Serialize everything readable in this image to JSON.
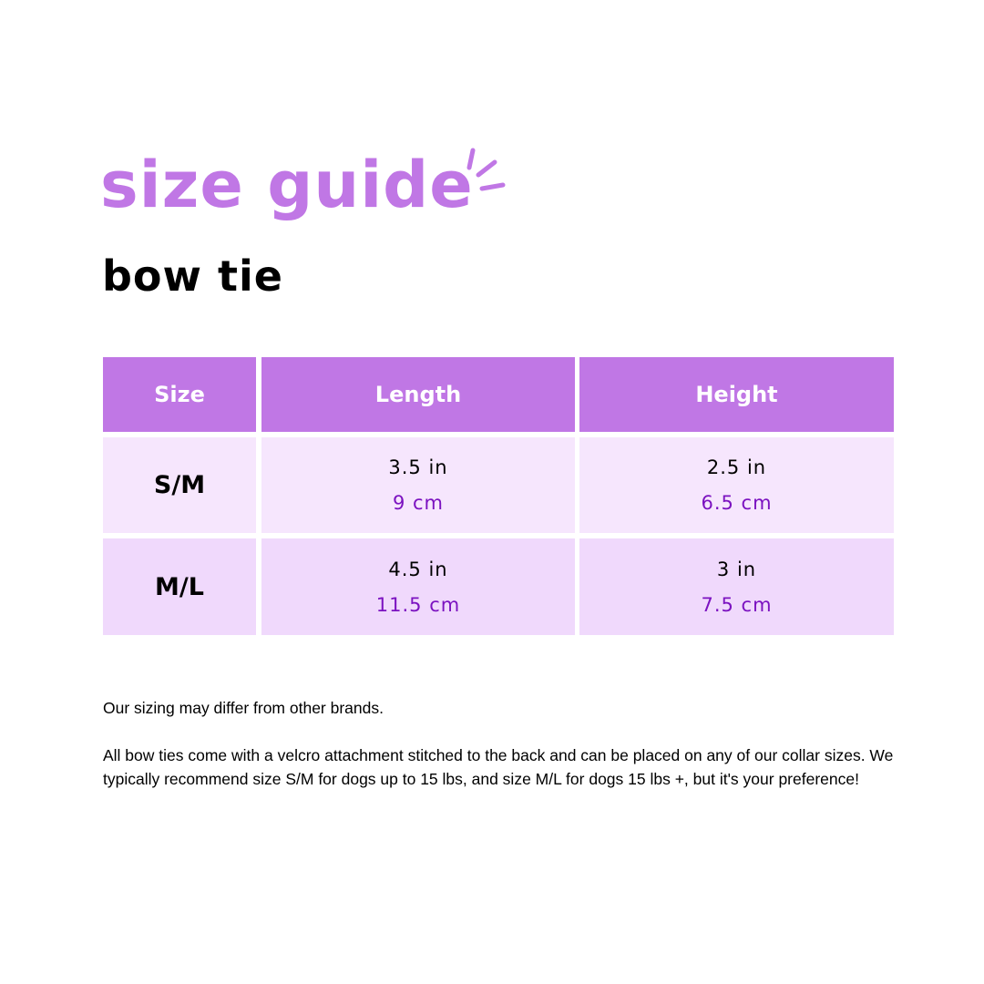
{
  "title": "size guide",
  "subtitle": "bow tie",
  "colors": {
    "accent": "#C077E5",
    "row1": "#F6E6FD",
    "row2": "#F0D9FC",
    "metric_text": "#7B12C0"
  },
  "table": {
    "headers": [
      "Size",
      "Length",
      "Height"
    ],
    "rows": [
      {
        "size": "S/M",
        "length_in": "3.5 in",
        "length_cm": "9 cm",
        "height_in": "2.5 in",
        "height_cm": "6.5 cm"
      },
      {
        "size": "M/L",
        "length_in": "4.5 in",
        "length_cm": "11.5 cm",
        "height_in": "3 in",
        "height_cm": "7.5 cm"
      }
    ]
  },
  "notes": [
    "Our sizing may differ from other brands.",
    "All bow ties come with a velcro attachment stitched to the back and can be placed on any of our collar sizes.  We typically recommend size S/M for dogs up to 15 lbs, and size M/L for dogs 15 lbs +, but it's your preference!"
  ]
}
